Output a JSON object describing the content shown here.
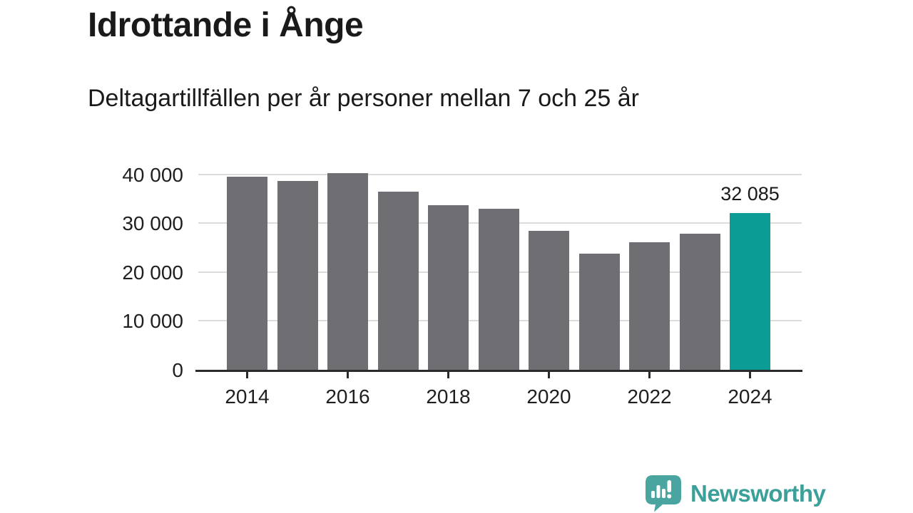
{
  "chart_data": {
    "type": "bar",
    "title": "Idrottande i Ånge",
    "subtitle": "Deltagartillfällen per år personer mellan 7 och 25 år",
    "categories": [
      2014,
      2015,
      2016,
      2017,
      2018,
      2019,
      2020,
      2021,
      2022,
      2023,
      2024
    ],
    "values": [
      39500,
      38600,
      40200,
      36400,
      33700,
      32900,
      28400,
      23800,
      26100,
      27900,
      32085
    ],
    "highlight_index": 10,
    "annotation": {
      "index": 10,
      "label": "32 085"
    },
    "x_tick_labels": [
      "2014",
      "2016",
      "2018",
      "2020",
      "2022",
      "2024"
    ],
    "y_ticks": [
      0,
      10000,
      20000,
      30000,
      40000
    ],
    "y_tick_labels": [
      "0",
      "10 000",
      "20 000",
      "30 000",
      "40 000"
    ],
    "ylim": [
      0,
      40000
    ],
    "xlabel": "",
    "ylabel": "",
    "grid": "horizontal",
    "legend": "none",
    "bar_color": "#6e6e73",
    "highlight_color": "#0a9c95"
  },
  "footer": {
    "brand": "Newsworthy",
    "logo_icon": "bar-chart-speech-bubble-icon",
    "brand_color": "#3aa099",
    "icon_color": "#4aa5a0",
    "icon_glyph_color": "#ffffff"
  }
}
